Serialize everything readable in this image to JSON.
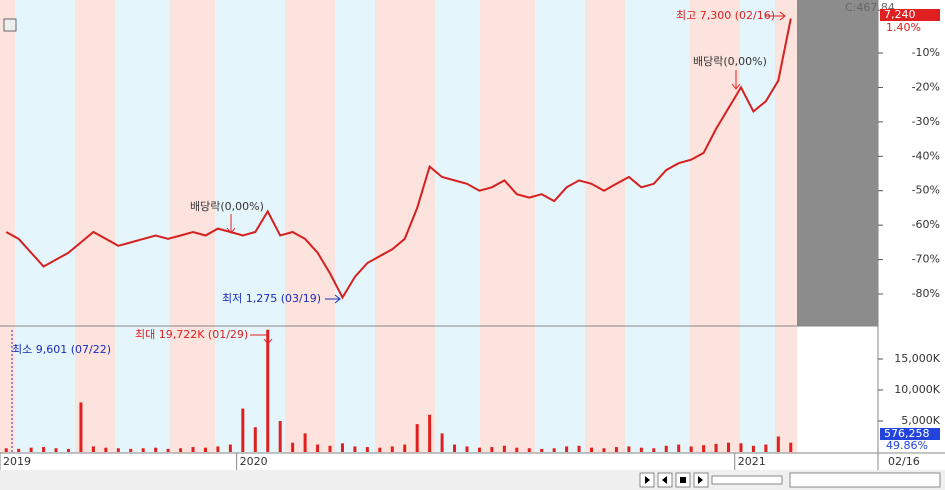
{
  "chart_data": [
    {
      "type": "line",
      "color": "#d62020",
      "values": [
        -62,
        -64,
        -68,
        -72,
        -70,
        -68,
        -65,
        -62,
        -64,
        -66,
        -65,
        -64,
        -63,
        -64,
        -63,
        -62,
        -63,
        -61,
        -62,
        -63,
        -62,
        -56,
        -63,
        -62,
        -64,
        -68,
        -74,
        -81,
        -75,
        -71,
        -69,
        -67,
        -64,
        -55,
        -43,
        -46,
        -47,
        -48,
        -50,
        -49,
        -47,
        -51,
        -52,
        -51,
        -53,
        -49,
        -47,
        -48,
        -50,
        -48,
        -46,
        -49,
        -48,
        -44,
        -42,
        -41,
        -39,
        -32,
        -26,
        -20,
        -27,
        -24,
        -18,
        0
      ],
      "ylim": [
        -89,
        5.4
      ],
      "yticks": [
        {
          "value": -10,
          "label": "-10%"
        },
        {
          "value": -20,
          "label": "-20%"
        },
        {
          "value": -30,
          "label": "-30%"
        },
        {
          "value": -40,
          "label": "-40%"
        },
        {
          "value": -50,
          "label": "-50%"
        },
        {
          "value": -60,
          "label": "-60%"
        },
        {
          "value": -70,
          "label": "-70%"
        },
        {
          "value": -80,
          "label": "-80%"
        }
      ],
      "annotations": [
        "최고 7,300 (02/16)",
        "배당락(0,00%)",
        "배당락(0,00%)",
        "최저 1,275 (03/19)"
      ],
      "close_label": "C:467.84",
      "last_value": "7,240",
      "change": "1.40%"
    },
    {
      "type": "bar",
      "color": "#e02020",
      "categories": [
        "2019",
        null,
        null,
        null,
        null,
        null,
        null,
        null,
        null,
        null,
        null,
        null,
        null,
        null,
        null,
        null,
        null,
        null,
        null,
        "2020",
        null,
        null,
        null,
        null,
        null,
        null,
        null,
        null,
        null,
        null,
        null,
        null,
        null,
        null,
        null,
        null,
        null,
        null,
        null,
        null,
        null,
        null,
        null,
        null,
        null,
        null,
        null,
        null,
        null,
        null,
        null,
        null,
        null,
        null,
        null,
        null,
        null,
        null,
        null,
        "2021",
        null,
        null,
        null,
        null
      ],
      "values": [
        600,
        500,
        700,
        800,
        600,
        500,
        8000,
        900,
        700,
        600,
        500,
        600,
        700,
        500,
        600,
        800,
        700,
        900,
        1200,
        7000,
        4000,
        19722,
        5000,
        1500,
        3000,
        1200,
        1000,
        1400,
        900,
        800,
        700,
        900,
        1200,
        4500,
        6000,
        3000,
        1200,
        900,
        700,
        800,
        1000,
        700,
        600,
        500,
        600,
        900,
        1000,
        700,
        600,
        800,
        900,
        700,
        600,
        1000,
        1200,
        900,
        1100,
        1300,
        1500,
        1400,
        1000,
        1200,
        2500,
        1500
      ],
      "ylim": [
        0,
        20000
      ],
      "yticks": [
        {
          "value": 5000,
          "label": "5,000K"
        },
        {
          "value": 10000,
          "label": "10,000K"
        },
        {
          "value": 15000,
          "label": "15,000K"
        }
      ],
      "annotations": [
        "최대 19,722K (01/29)",
        "최소 9,601 (07/22)"
      ],
      "last_value": "576,258",
      "ratio": "49.86%",
      "date_label": "02/16"
    }
  ]
}
